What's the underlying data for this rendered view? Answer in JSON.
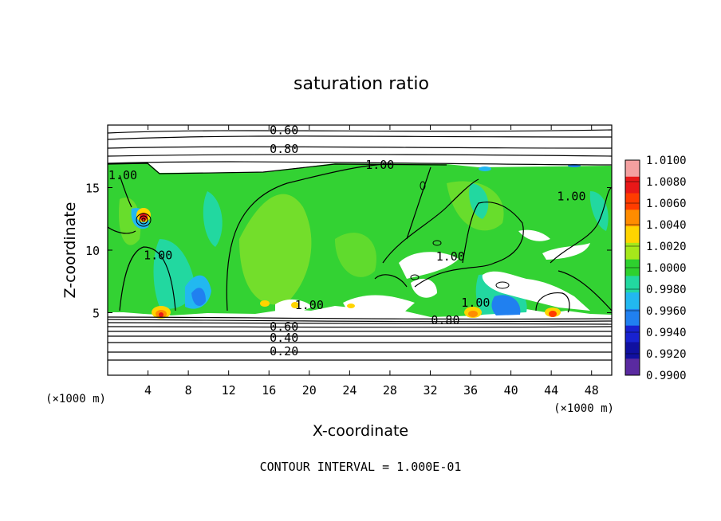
{
  "chart_data": {
    "type": "heatmap",
    "title": "saturation ratio",
    "xlabel": "X-coordinate",
    "ylabel": "Z-coordinate",
    "x_unit": "(×1000 m)",
    "z_unit": "(×1000 m)",
    "footer": "CONTOUR INTERVAL = 1.000E-01",
    "xlim": [
      0,
      50
    ],
    "ylim": [
      0,
      20
    ],
    "x_ticks": [
      4,
      8,
      12,
      16,
      20,
      24,
      28,
      32,
      36,
      40,
      44,
      48
    ],
    "y_ticks": [
      5,
      10,
      15
    ],
    "colorbar": {
      "labels": [
        "1.0100",
        "1.0080",
        "1.0060",
        "1.0040",
        "1.0020",
        "1.0000",
        "0.9980",
        "0.9960",
        "0.9940",
        "0.9920",
        "0.9900"
      ],
      "colors": [
        "#f4a0a0",
        "#e81818",
        "#ff3c00",
        "#ff8c00",
        "#ffd400",
        "#a6e81a",
        "#2ed12e",
        "#22d8a0",
        "#22b8f0",
        "#2080f0",
        "#1822d0",
        "#1010a0",
        "#5a2aa0"
      ]
    },
    "contour_labels": [
      {
        "text": "0.60",
        "x": 17.5,
        "z": 19.6
      },
      {
        "text": "0.80",
        "x": 17.5,
        "z": 18.1
      },
      {
        "text": "1.00",
        "x": 27.0,
        "z": 16.8
      },
      {
        "text": "1.00",
        "x": 1.5,
        "z": 16.0
      },
      {
        "text": "1.00",
        "x": 46.0,
        "z": 14.3
      },
      {
        "text": "1.00",
        "x": 5.0,
        "z": 9.6
      },
      {
        "text": "1.00",
        "x": 34.0,
        "z": 9.5
      },
      {
        "text": "1.00",
        "x": 20.0,
        "z": 5.6
      },
      {
        "text": "1.00",
        "x": 36.5,
        "z": 5.8
      },
      {
        "text": "0.80",
        "x": 33.5,
        "z": 4.4
      },
      {
        "text": "0.60",
        "x": 17.5,
        "z": 3.9
      },
      {
        "text": "0.40",
        "x": 17.5,
        "z": 3.0
      },
      {
        "text": "0.20",
        "x": 17.5,
        "z": 1.9
      }
    ]
  }
}
